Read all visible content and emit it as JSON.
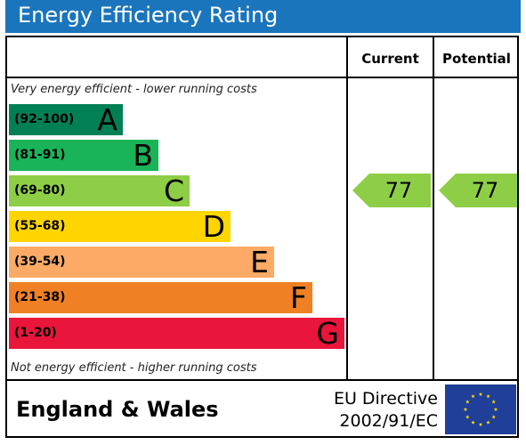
{
  "header": {
    "title": "Energy Efficiency Rating"
  },
  "columns": {
    "current": "Current",
    "potential": "Potential"
  },
  "notes": {
    "top": "Very energy efficient - lower running costs",
    "bottom": "Not energy efficient - higher running costs"
  },
  "footer": {
    "region": "England & Wales",
    "directive_line1": "EU Directive",
    "directive_line2": "2002/91/EC"
  },
  "colors": {
    "title_bar": "#1b75bc",
    "flag_blue": "#1f3f99",
    "flag_stars": "#ffdd00"
  },
  "chart_data": {
    "type": "bar",
    "title": "Energy Efficiency Rating",
    "categories": [
      "A",
      "B",
      "C",
      "D",
      "E",
      "F",
      "G"
    ],
    "ranges": [
      "(92-100)",
      "(81-91)",
      "(69-80)",
      "(55-68)",
      "(39-54)",
      "(21-38)",
      "(1-20)"
    ],
    "colors": [
      "#008054",
      "#19b459",
      "#8dce46",
      "#ffd500",
      "#fcaa65",
      "#ef8023",
      "#e9153b"
    ],
    "current": {
      "value": 77,
      "band": "C"
    },
    "potential": {
      "value": 77,
      "band": "C"
    }
  }
}
